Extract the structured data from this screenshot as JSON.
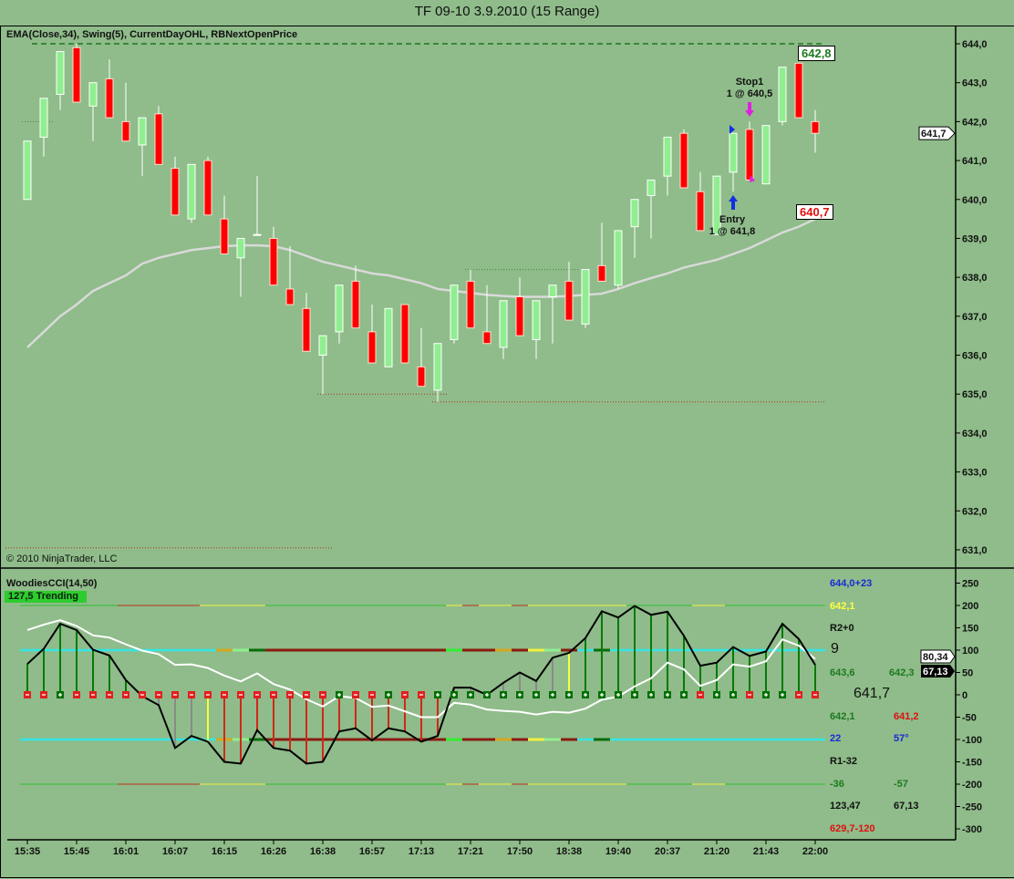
{
  "window": {
    "title": "TF 09-10  3.9.2010 (15 Range)"
  },
  "price_panel": {
    "legend": "EMA(Close,34), Swing(5), CurrentDayOHL, RBNextOpenPrice",
    "copyright": "© 2010 NinjaTrader, LLC",
    "high_label": "642,8",
    "low_label": "640,7",
    "last_price": "641,7",
    "stop_label": "Stop1",
    "stop_detail": "1 @ 640,5",
    "entry_label": "Entry",
    "entry_detail": "1 @ 641,8"
  },
  "cci_panel": {
    "title": "WoodiesCCI(14,50)",
    "status": "127,5 Trending",
    "turbo_value": "80,34",
    "cci_value": "67,13",
    "side": {
      "r1": "644,0+23",
      "r2": "642,1",
      "r3": "R2+0",
      "r4": "9",
      "r5a": "643,6",
      "r5b": "642,3",
      "r6": "641,7",
      "r7a": "642,1",
      "r7b": "641,2",
      "r8a": "22",
      "r8b": "57°",
      "r9": "R1-32",
      "r10a": "-36",
      "r10b": "-57",
      "r11a": "123,47",
      "r11b": "67,13",
      "r12": "629,7-120"
    }
  },
  "colors": {
    "background": "#8fbc8a",
    "up": "#90ee90",
    "down": "#ff0000",
    "ema": "#d9d9d9",
    "cci": "#000000",
    "turbo": "#ffffff",
    "zero_up": "#007000",
    "zero_down": "#e02020"
  },
  "chart_data": [
    {
      "type": "candlestick",
      "title": "TF 09-10  3.9.2010 (15 Range)",
      "ylim": [
        630.8,
        644.3
      ],
      "y_ticks": [
        "644,0",
        "643,0",
        "642,0",
        "641,0",
        "640,0",
        "639,0",
        "638,0",
        "637,0",
        "636,0",
        "635,0",
        "634,0",
        "633,0",
        "632,0",
        "631,0"
      ],
      "y_tick_values": [
        644,
        643,
        642,
        641,
        640,
        639,
        638,
        637,
        636,
        635,
        634,
        633,
        632,
        631
      ],
      "x_tick_labels": [
        "15:35",
        "15:45",
        "16:01",
        "16:07",
        "16:15",
        "16:26",
        "16:38",
        "16:57",
        "17:13",
        "17:21",
        "17:50",
        "18:38",
        "19:40",
        "20:37",
        "21:20",
        "21:43",
        "22:00"
      ],
      "x_tick_every": 3,
      "ohlc": [
        [
          640.0,
          641.5,
          640.0,
          641.5
        ],
        [
          641.6,
          642.6,
          641.1,
          642.6
        ],
        [
          642.7,
          643.8,
          642.3,
          643.8
        ],
        [
          643.9,
          644.0,
          642.5,
          642.5
        ],
        [
          642.4,
          643.0,
          641.5,
          643.0
        ],
        [
          643.1,
          643.6,
          642.1,
          642.1
        ],
        [
          642.0,
          643.0,
          641.5,
          641.5
        ],
        [
          641.4,
          642.1,
          640.6,
          642.1
        ],
        [
          642.2,
          642.4,
          640.9,
          640.9
        ],
        [
          640.8,
          641.1,
          639.6,
          639.6
        ],
        [
          639.5,
          640.9,
          639.4,
          640.9
        ],
        [
          641.0,
          641.1,
          639.6,
          639.6
        ],
        [
          639.5,
          640.1,
          638.6,
          638.6
        ],
        [
          638.5,
          639.0,
          637.5,
          639.0
        ],
        [
          639.1,
          640.6,
          639.1,
          639.1
        ],
        [
          639.0,
          639.3,
          637.8,
          637.8
        ],
        [
          637.7,
          638.8,
          637.3,
          637.3
        ],
        [
          637.2,
          637.6,
          636.1,
          636.1
        ],
        [
          636.0,
          636.5,
          635.0,
          636.5
        ],
        [
          636.6,
          637.8,
          636.3,
          637.8
        ],
        [
          637.9,
          638.3,
          636.7,
          636.7
        ],
        [
          636.6,
          637.3,
          635.8,
          635.8
        ],
        [
          635.7,
          637.2,
          635.7,
          637.2
        ],
        [
          637.3,
          637.3,
          635.8,
          635.8
        ],
        [
          635.7,
          636.7,
          635.2,
          635.2
        ],
        [
          635.1,
          636.3,
          634.8,
          636.3
        ],
        [
          636.4,
          637.8,
          636.3,
          637.8
        ],
        [
          637.9,
          638.2,
          636.7,
          636.7
        ],
        [
          636.6,
          637.8,
          636.3,
          636.3
        ],
        [
          636.2,
          637.4,
          635.9,
          637.4
        ],
        [
          637.5,
          638.0,
          636.5,
          636.5
        ],
        [
          636.4,
          637.4,
          635.9,
          637.4
        ],
        [
          637.5,
          637.8,
          636.3,
          637.8
        ],
        [
          637.9,
          638.4,
          636.9,
          636.9
        ],
        [
          636.8,
          638.2,
          636.7,
          638.2
        ],
        [
          638.3,
          639.4,
          637.9,
          637.9
        ],
        [
          637.8,
          639.2,
          637.7,
          639.2
        ],
        [
          639.3,
          640.0,
          638.5,
          640.0
        ],
        [
          640.1,
          640.5,
          639.0,
          640.5
        ],
        [
          640.6,
          641.6,
          640.1,
          641.6
        ],
        [
          641.7,
          641.8,
          640.3,
          640.3
        ],
        [
          640.2,
          640.7,
          639.2,
          639.2
        ],
        [
          639.1,
          640.6,
          639.1,
          640.6
        ],
        [
          640.7,
          641.7,
          640.2,
          641.7
        ],
        [
          641.8,
          642.0,
          640.5,
          640.5
        ],
        [
          640.4,
          641.9,
          640.4,
          641.9
        ],
        [
          642.0,
          643.4,
          641.9,
          643.4
        ],
        [
          643.5,
          643.5,
          642.1,
          642.1
        ],
        [
          642.0,
          642.3,
          641.2,
          641.7
        ]
      ],
      "ema34": [
        636.2,
        636.6,
        637.0,
        637.3,
        637.65,
        637.85,
        638.05,
        638.35,
        638.5,
        638.6,
        638.7,
        638.75,
        638.8,
        638.82,
        638.82,
        638.8,
        638.7,
        638.55,
        638.4,
        638.3,
        638.2,
        638.1,
        638.05,
        637.95,
        637.85,
        637.7,
        637.65,
        637.6,
        637.55,
        637.52,
        637.5,
        637.5,
        637.5,
        637.52,
        637.55,
        637.58,
        637.7,
        637.85,
        637.98,
        638.1,
        638.25,
        638.35,
        638.45,
        638.6,
        638.75,
        638.95,
        639.15,
        639.3,
        639.5
      ],
      "day_high": 644.0,
      "swing_lines": [
        {
          "price": 642.0,
          "from": 0,
          "to": 1,
          "color": "#3c8c3c"
        },
        {
          "price": 638.2,
          "from": 27,
          "to": 33,
          "color": "#3c8c3c"
        },
        {
          "price": 635.0,
          "from": 18,
          "to": 25,
          "color": "#b03020"
        },
        {
          "price": 634.8,
          "from": 25,
          "to": 48,
          "color": "#b03020"
        },
        {
          "price": 631.05,
          "from": -1,
          "to": 18,
          "color": "#b03020"
        }
      ],
      "entry": {
        "bar": 43,
        "price": 641.8
      },
      "stop": {
        "bar": 44,
        "price": 640.5
      }
    },
    {
      "type": "bar+line",
      "title": "WoodiesCCI(14,50)",
      "ylim": [
        -310,
        260
      ],
      "y_ticks": [
        "250",
        "200",
        "150",
        "100",
        "50",
        "0",
        "-50",
        "-100",
        "-150",
        "-200",
        "-250",
        "-300"
      ],
      "y_tick_values": [
        250,
        200,
        150,
        100,
        50,
        0,
        -50,
        -100,
        -150,
        -200,
        -250,
        -300
      ],
      "cci": [
        69,
        103,
        159,
        145,
        101,
        88,
        33,
        -3,
        -23,
        -119,
        -92,
        -105,
        -150,
        -154,
        -79,
        -119,
        -125,
        -154,
        -150,
        -82,
        -75,
        -102,
        -75,
        -82,
        -105,
        -92,
        16,
        16,
        0,
        27,
        50,
        31,
        83,
        94,
        127,
        187,
        173,
        199,
        179,
        186,
        132,
        65,
        72,
        107,
        87,
        97,
        159,
        125,
        67
      ],
      "turbo": [
        145,
        157,
        167,
        154,
        133,
        128,
        113,
        99,
        91,
        67,
        68,
        60,
        43,
        30,
        48,
        24,
        12,
        -10,
        -26,
        -3,
        -7,
        -27,
        -24,
        -37,
        -50,
        -50,
        -18,
        -22,
        -33,
        -36,
        -38,
        -44,
        -38,
        -40,
        -31,
        -11,
        -4,
        19,
        37,
        72,
        57,
        20,
        33,
        68,
        63,
        75,
        124,
        110,
        80.34
      ],
      "bar_colors": "gggggggg",
      "bar_color_codes": "ggggggggxxxyrrrrrrrrrrrrrrxxxxxxxyggggggggggggggg",
      "zero_markers": "--+----------------+--+--++++++++++++++++-++-++--",
      "band100_codes": "ccccccccccccoldrrrrrrrrrrrbrrorylrcdccccccccccccc",
      "band200_codes": "ggggggrrrrryyyygggggggggggyryyryyyyyyggggyygggggg"
    }
  ]
}
